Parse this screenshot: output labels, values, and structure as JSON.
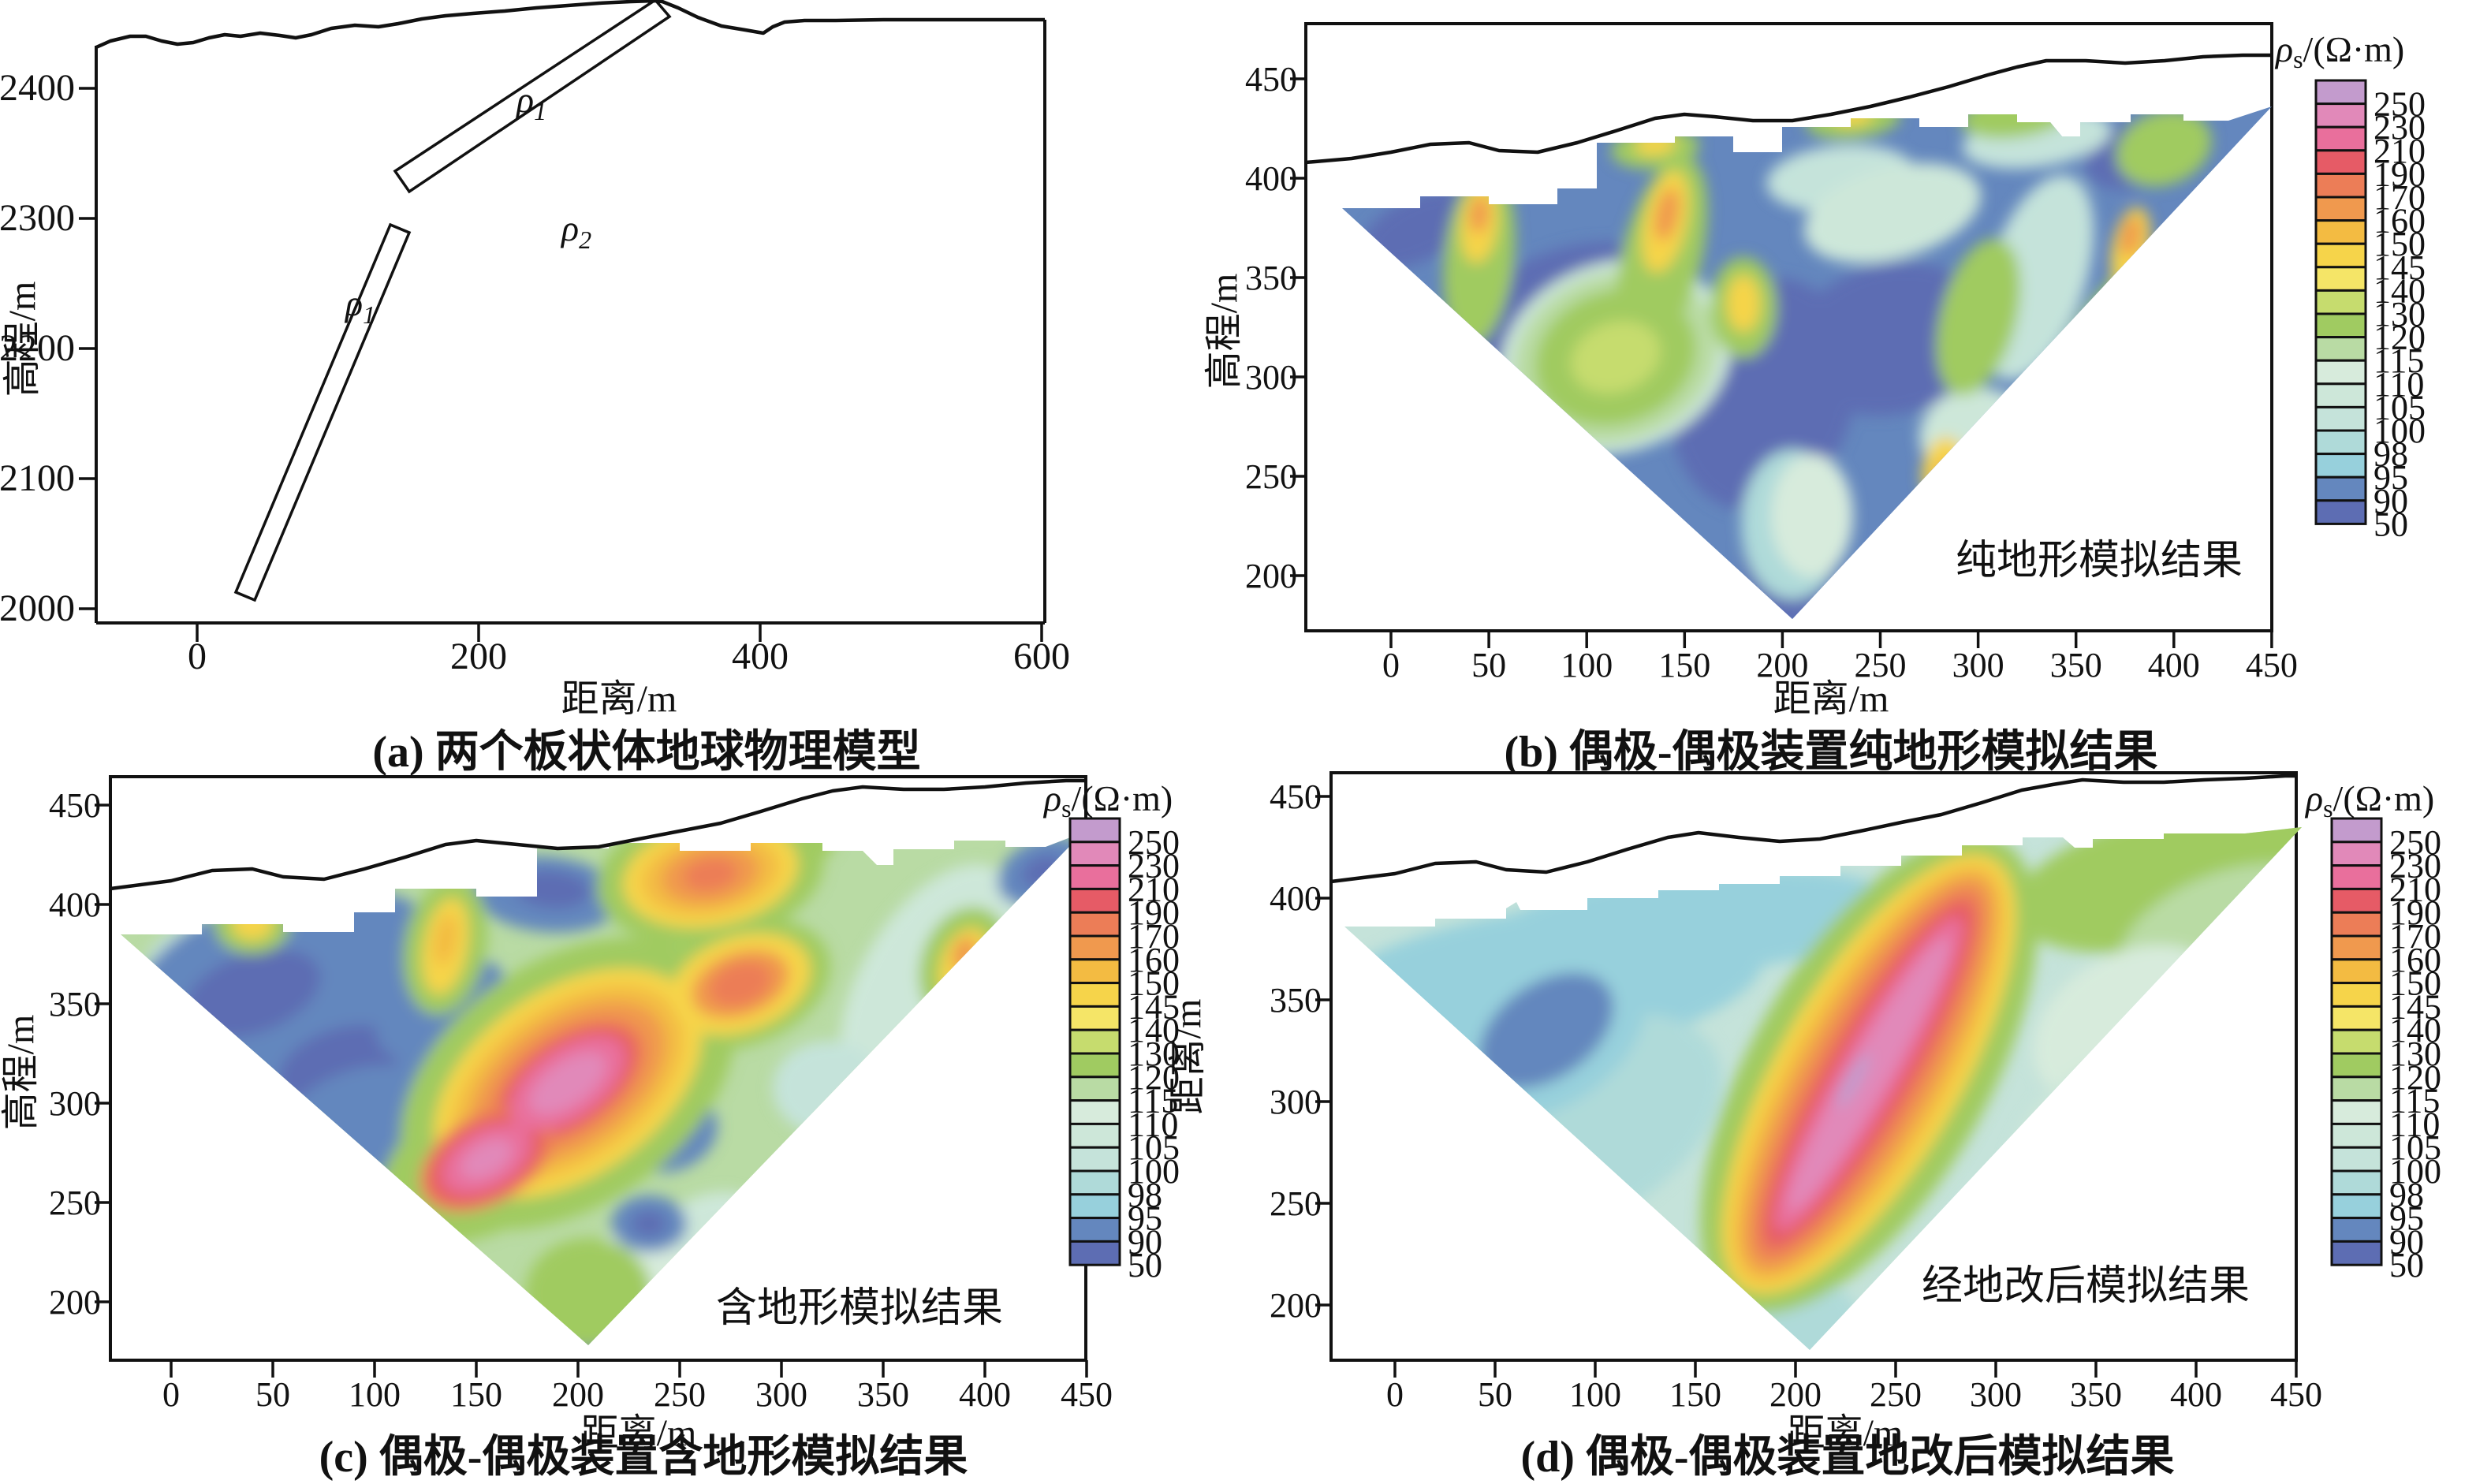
{
  "figure": {
    "background": "#ffffff",
    "line_color": "#111111"
  },
  "colorbar": {
    "symbol": "ρ",
    "symbol_sub": "s",
    "unit": "/(Ω·m)",
    "values": [
      "250",
      "230",
      "210",
      "190",
      "170",
      "160",
      "150",
      "145",
      "140",
      "130",
      "120",
      "115",
      "110",
      "105",
      "100",
      "98",
      "95",
      "90",
      "50"
    ],
    "colors": [
      "#c39bcd",
      "#e189b9",
      "#e96f9c",
      "#e65b66",
      "#ec7d57",
      "#f0994e",
      "#f3bb42",
      "#f6d44a",
      "#f5e567",
      "#c6dc6e",
      "#a0cb61",
      "#b9dba4",
      "#d7ebdc",
      "#cde7d9",
      "#c5e3da",
      "#afdad9",
      "#97d0dc",
      "#6487be",
      "#5d6db3"
    ]
  },
  "panels": {
    "a": {
      "caption": "(a) 两个板状体地球物理模型",
      "xlabel": "距离/m",
      "ylabel": "高程/m",
      "x_ticks": [
        "0",
        "200",
        "400",
        "600"
      ],
      "y_ticks": [
        "2400",
        "2300",
        "2200",
        "2100",
        "2000"
      ],
      "rho_symbol": "ρ",
      "rho1_sub": "1",
      "rho2_sub": "2"
    },
    "b": {
      "caption": "(b) 偶极-偶极装置纯地形模拟结果",
      "xlabel": "距离/m",
      "ylabel": "高程/m",
      "annotation": "纯地形模拟结果",
      "x_ticks": [
        "0",
        "50",
        "100",
        "150",
        "200",
        "250",
        "300",
        "350",
        "400",
        "450"
      ],
      "y_ticks": [
        "450",
        "400",
        "350",
        "300",
        "250",
        "200"
      ]
    },
    "c": {
      "caption": "(c) 偶极-偶极装置含地形模拟结果",
      "xlabel": "距离/m",
      "ylabel": "高程/m",
      "annotation": "含地形模拟结果",
      "x_ticks": [
        "0",
        "50",
        "100",
        "150",
        "200",
        "250",
        "300",
        "350",
        "400",
        "450"
      ],
      "y_ticks": [
        "450",
        "400",
        "350",
        "300",
        "250",
        "200"
      ]
    },
    "d": {
      "caption": "(d) 偶极-偶极装置地改后模拟结果",
      "xlabel": "距离/m",
      "ylabel": "距离/m",
      "annotation": "经地改后模拟结果",
      "x_ticks": [
        "0",
        "50",
        "100",
        "150",
        "200",
        "250",
        "300",
        "350",
        "400",
        "450"
      ],
      "y_ticks": [
        "450",
        "400",
        "350",
        "300",
        "250",
        "200"
      ]
    }
  },
  "chart_data": [
    {
      "panel": "a",
      "type": "diagram",
      "title": "(a) 两个板状体地球物理模型",
      "xlabel": "距离/m",
      "ylabel": "高程/m",
      "xlim": [
        0,
        600
      ],
      "ylim": [
        2000,
        2460
      ],
      "x_ticks": [
        0,
        200,
        400,
        600
      ],
      "y_ticks": [
        2400,
        2300,
        2200,
        2100,
        2000
      ],
      "elements": {
        "host_medium_label": "ρ2",
        "plates": [
          {
            "label": "ρ1",
            "from_m": [
              146,
              2328
            ],
            "to_m": [
              330,
              2463
            ],
            "note": "upper thin dipping plate, top end reaches the terrain surface"
          },
          {
            "label": "ρ1",
            "from_m": [
              34,
              2010
            ],
            "to_m": [
              144,
              2292
            ],
            "note": "lower thin steeply dipping plate"
          }
        ],
        "terrain_profile_m": [
          [
            0,
            2432
          ],
          [
            60,
            2438
          ],
          [
            120,
            2436
          ],
          [
            200,
            2444
          ],
          [
            280,
            2450
          ],
          [
            330,
            2462
          ],
          [
            365,
            2440
          ],
          [
            385,
            2432
          ],
          [
            410,
            2448
          ],
          [
            480,
            2448
          ],
          [
            600,
            2448
          ]
        ]
      },
      "grid": false,
      "legend": null
    },
    {
      "panel": "b",
      "type": "heatmap",
      "title": "(b) 偶极-偶极装置纯地形模拟结果",
      "xlabel": "距离/m",
      "ylabel": "高程/m",
      "xlim": [
        -30,
        450
      ],
      "ylim": [
        175,
        465
      ],
      "x_ticks": [
        0,
        50,
        100,
        150,
        200,
        250,
        300,
        350,
        400,
        450
      ],
      "y_ticks": [
        450,
        400,
        350,
        300,
        250,
        200
      ],
      "annotation": "纯地形模拟结果",
      "legend_label": "ρs/(Ω·m)",
      "legend_position": "right",
      "levels": [
        250,
        230,
        210,
        190,
        170,
        160,
        150,
        145,
        140,
        130,
        120,
        115,
        110,
        105,
        100,
        98,
        95,
        90,
        50
      ],
      "level_colors": [
        "#c39bcd",
        "#e189b9",
        "#e96f9c",
        "#e65b66",
        "#ec7d57",
        "#f0994e",
        "#f3bb42",
        "#f6d44a",
        "#f5e567",
        "#c6dc6e",
        "#a0cb61",
        "#b9dba4",
        "#d7ebdc",
        "#cde7d9",
        "#c5e3da",
        "#afdad9",
        "#97d0dc",
        "#6487be",
        "#5d6db3"
      ],
      "region": "inverted triangular pseudosection: left corner (-25 m, 385 m), right corner (450 m, 436 m), bottom apex (205 m, 178 m); terrain line above from 408 m to 462 m",
      "pattern": "dominantly low 50–90 Ω·m (blue) background; green–yellow high streaks (130–160 Ω·m) near x≈45, x≈140, x≈180, x≈280–300 and along the right edge; pale 100–115 Ω·m patches top-centre and near the apex"
    },
    {
      "panel": "c",
      "type": "heatmap",
      "title": "(c) 偶极-偶极装置含地形模拟结果",
      "xlabel": "距离/m",
      "ylabel": "高程/m",
      "xlim": [
        -30,
        450
      ],
      "ylim": [
        175,
        465
      ],
      "x_ticks": [
        0,
        50,
        100,
        150,
        200,
        250,
        300,
        350,
        400,
        450
      ],
      "y_ticks": [
        450,
        400,
        350,
        300,
        250,
        200
      ],
      "annotation": "含地形模拟结果",
      "legend_label": "ρs/(Ω·m)",
      "legend_position": "right",
      "levels": [
        250,
        230,
        210,
        190,
        170,
        160,
        150,
        145,
        140,
        130,
        120,
        115,
        110,
        105,
        100,
        98,
        95,
        90,
        50
      ],
      "level_colors": [
        "#c39bcd",
        "#e189b9",
        "#e96f9c",
        "#e65b66",
        "#ec7d57",
        "#f0994e",
        "#f3bb42",
        "#f6d44a",
        "#f5e567",
        "#c6dc6e",
        "#a0cb61",
        "#b9dba4",
        "#d7ebdc",
        "#cde7d9",
        "#c5e3da",
        "#afdad9",
        "#97d0dc",
        "#6487be",
        "#5d6db3"
      ],
      "region": "inverted triangular pseudosection, same geometry as panel (b)",
      "pattern": "blue lows (50–90 Ω·m) in upper-left and top-middle; strong NE-dipping high-resistivity anomaly through the centre with pink cores 230–250 Ω·m around (150–200 m, 270–320 m); orange–red highs (170–210 Ω·m) top-right near (265 m, 415 m) and (280 m, 360 m); greens/yellows elsewhere; blue spots right of centre and at bottom apex"
    },
    {
      "panel": "d",
      "type": "heatmap",
      "title": "(d) 偶极-偶极装置地改后模拟结果",
      "xlabel": "距离/m",
      "ylabel": "距离/m",
      "xlim": [
        -30,
        450
      ],
      "ylim": [
        175,
        465
      ],
      "x_ticks": [
        0,
        50,
        100,
        150,
        200,
        250,
        300,
        350,
        400,
        450
      ],
      "y_ticks": [
        450,
        400,
        350,
        300,
        250,
        200
      ],
      "annotation": "经地改后模拟结果",
      "legend_label": "ρs/(Ω·m)",
      "legend_position": "right",
      "levels": [
        250,
        230,
        210,
        190,
        170,
        160,
        150,
        145,
        140,
        130,
        120,
        115,
        110,
        105,
        100,
        98,
        95,
        90,
        50
      ],
      "level_colors": [
        "#c39bcd",
        "#e189b9",
        "#e96f9c",
        "#e65b66",
        "#ec7d57",
        "#f0994e",
        "#f3bb42",
        "#f6d44a",
        "#f5e567",
        "#c6dc6e",
        "#a0cb61",
        "#b9dba4",
        "#d7ebdc",
        "#cde7d9",
        "#c5e3da",
        "#afdad9",
        "#97d0dc",
        "#6487be",
        "#5d6db3"
      ],
      "region": "inverted triangular pseudosection, same geometry as panels (b)/(c)",
      "pattern": "smooth 100–110 Ω·m pale background; one coherent NE-dipping high-resistivity band from near the apex (≈160 m, 200 m) to (≈300 m, 430 m) with 230–250 Ω·m pink core; 50–90 Ω·m blue patch near (60–100 m, 320–360 m); 120–130 Ω·m green region top-right; tiny blue spot near (410 m, 412 m)"
    }
  ]
}
